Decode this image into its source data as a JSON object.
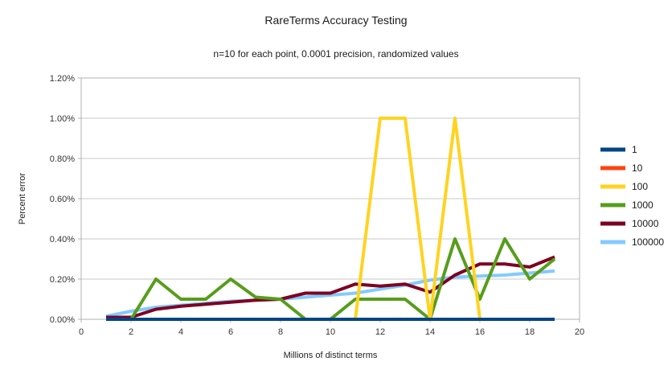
{
  "chart_data": {
    "type": "line",
    "title": "RareTerms Accuracy Testing",
    "subtitle": "n=10 for each point, 0.0001 precision, randomized values",
    "xlabel": "Millions of distinct terms",
    "ylabel": "Percent error",
    "xlim": [
      0,
      20
    ],
    "ylim_percent": [
      0,
      1.2
    ],
    "x_ticks": [
      0,
      2,
      4,
      6,
      8,
      10,
      12,
      14,
      16,
      18,
      20
    ],
    "y_ticks_percent": [
      0,
      0.2,
      0.4,
      0.6,
      0.8,
      1.0,
      1.2
    ],
    "y_tick_labels": [
      "0.00%",
      "0.20%",
      "0.40%",
      "0.60%",
      "0.80%",
      "1.00%",
      "1.20%"
    ],
    "grid": true,
    "legend_position": "right",
    "x": [
      1,
      2,
      3,
      4,
      5,
      6,
      7,
      8,
      9,
      10,
      11,
      12,
      13,
      14,
      15,
      16,
      17,
      18,
      19
    ],
    "series": [
      {
        "name": "1",
        "color": "#004586",
        "values_percent": [
          0,
          0,
          0,
          0,
          0,
          0,
          0,
          0,
          0,
          0,
          0,
          0,
          0,
          0,
          0,
          0,
          0,
          0,
          0
        ]
      },
      {
        "name": "10",
        "color": "#ff420e",
        "values_percent": [
          0,
          0,
          0,
          0,
          0,
          0,
          0,
          0,
          0,
          0,
          0,
          0,
          0,
          0,
          0,
          0,
          0,
          0,
          0
        ]
      },
      {
        "name": "100",
        "color": "#ffd320",
        "values_percent": [
          0,
          0,
          0,
          0,
          0,
          0,
          0,
          0,
          0,
          0,
          0,
          1.0,
          1.0,
          0,
          1.0,
          0,
          0,
          0,
          0
        ]
      },
      {
        "name": "1000",
        "color": "#579d1c",
        "values_percent": [
          0,
          0,
          0.2,
          0.1,
          0.1,
          0.2,
          0.11,
          0.1,
          0,
          0,
          0.1,
          0.1,
          0.1,
          0,
          0.4,
          0.1,
          0.4,
          0.2,
          0.3
        ]
      },
      {
        "name": "10000",
        "color": "#7e0021",
        "values_percent": [
          0.01,
          0.01,
          0.05,
          0.065,
          0.075,
          0.085,
          0.095,
          0.1,
          0.13,
          0.13,
          0.175,
          0.165,
          0.175,
          0.135,
          0.22,
          0.275,
          0.275,
          0.26,
          0.31
        ]
      },
      {
        "name": "100000",
        "color": "#83caff",
        "values_percent": [
          0.015,
          0.04,
          0.06,
          0.07,
          0.08,
          0.09,
          0.095,
          0.1,
          0.11,
          0.12,
          0.13,
          0.15,
          0.17,
          0.195,
          0.21,
          0.215,
          0.22,
          0.23,
          0.24
        ]
      }
    ],
    "draw_order": [
      "100000",
      "10000",
      "1000",
      "100",
      "10",
      "1"
    ],
    "grid_color": "#c8c8c8",
    "axis_color": "#b3b3b3",
    "tick_label_color": "#333333"
  }
}
